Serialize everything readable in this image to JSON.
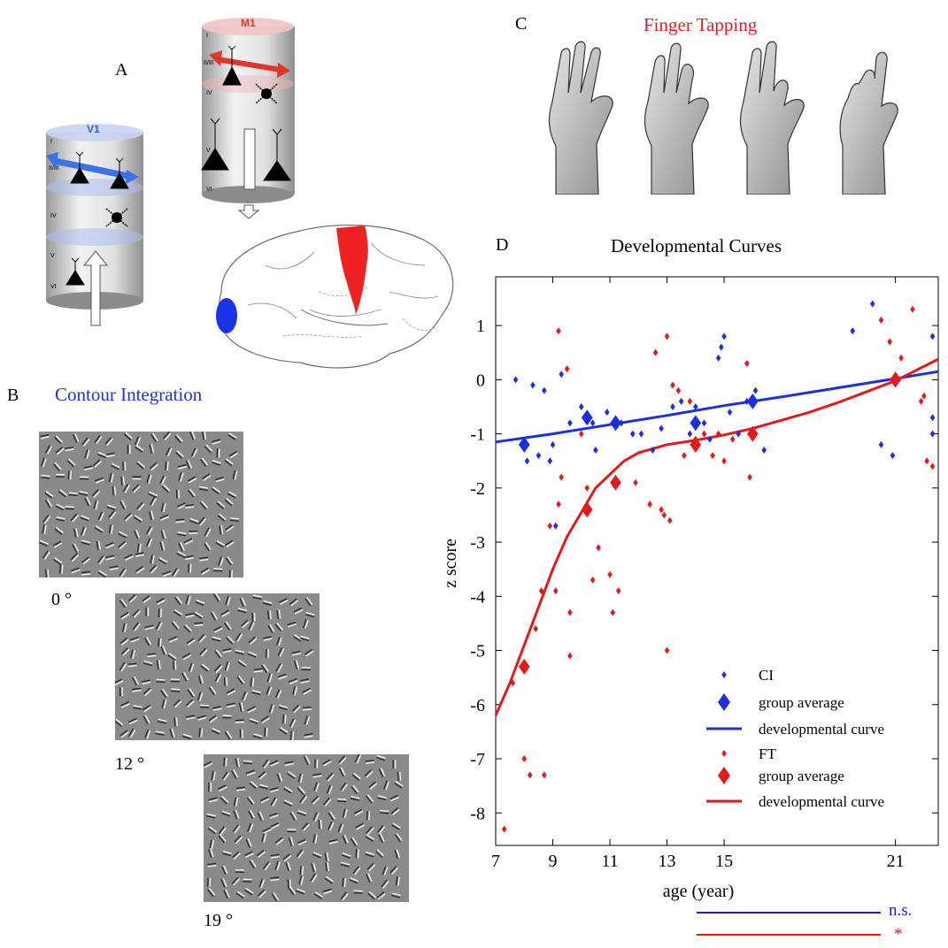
{
  "panels": {
    "a": {
      "letter": "A",
      "v1_label": "V1",
      "m1_label": "M1",
      "layers_v1": [
        "I",
        "II/III",
        "IV",
        "V",
        "VI"
      ],
      "layers_m1": [
        "I",
        "II/III",
        "IV",
        "V",
        "VI"
      ],
      "colors": {
        "v1": "#2f64e0",
        "m1": "#e0352b"
      }
    },
    "b": {
      "letter": "B",
      "title": "Contour Integration",
      "title_color": "#2233dd",
      "stimuli": [
        {
          "angle_label": "0 °"
        },
        {
          "angle_label": "12 °"
        },
        {
          "angle_label": "19 °"
        }
      ]
    },
    "c": {
      "letter": "C",
      "title": "Finger Tapping",
      "title_color": "#e02020"
    },
    "d": {
      "letter": "D",
      "title": "Developmental Curves",
      "significance": [
        {
          "label": "n.s.",
          "color": "#1a1adb"
        },
        {
          "label": "*",
          "color": "#e01818"
        }
      ]
    }
  },
  "chart_data": {
    "type": "scatter",
    "title": "Developmental Curves",
    "xlabel": "age (year)",
    "ylabel": "z score",
    "xlim": [
      7,
      22.5
    ],
    "ylim": [
      -8.6,
      1.9
    ],
    "xticks": [
      7,
      9,
      11,
      13,
      15,
      21
    ],
    "yticks": [
      1,
      0,
      -1,
      -2,
      -3,
      -4,
      -5,
      -6,
      -7,
      -8
    ],
    "legend": {
      "placement": "bottom-right",
      "entries": [
        {
          "label": "CI",
          "kind": "point",
          "color": "#1a2fe0"
        },
        {
          "label": "group average",
          "kind": "diamond",
          "color": "#1a2fe0"
        },
        {
          "label": "developmental curve",
          "kind": "line",
          "color": "#1a2fe0"
        },
        {
          "label": "FT",
          "kind": "point",
          "color": "#e31a1a"
        },
        {
          "label": "group average",
          "kind": "diamond",
          "color": "#e31a1a"
        },
        {
          "label": "developmental curve",
          "kind": "line",
          "color": "#e31a1a"
        }
      ]
    },
    "series": [
      {
        "name": "CI",
        "color": "#1a2fe0",
        "points": [
          [
            7.7,
            0.0
          ],
          [
            8.1,
            -1.5
          ],
          [
            8.3,
            -0.1
          ],
          [
            8.5,
            -1.4
          ],
          [
            8.7,
            -0.2
          ],
          [
            8.9,
            -1.5
          ],
          [
            9.0,
            -1.2
          ],
          [
            9.3,
            0.1
          ],
          [
            9.1,
            -2.7
          ],
          [
            9.6,
            -0.8
          ],
          [
            10.0,
            -0.5
          ],
          [
            10.4,
            -0.8
          ],
          [
            10.5,
            -1.3
          ],
          [
            10.9,
            -0.6
          ],
          [
            11.4,
            -0.8
          ],
          [
            11.8,
            -1.0
          ],
          [
            12.1,
            -1.0
          ],
          [
            12.5,
            -1.3
          ],
          [
            12.8,
            -0.9
          ],
          [
            13.2,
            -0.5
          ],
          [
            13.5,
            -0.4
          ],
          [
            13.8,
            -1.0
          ],
          [
            14.0,
            -0.5
          ],
          [
            14.3,
            -0.8
          ],
          [
            14.5,
            -1.1
          ],
          [
            14.8,
            0.4
          ],
          [
            14.9,
            0.6
          ],
          [
            15.0,
            0.8
          ],
          [
            15.2,
            -0.6
          ],
          [
            15.5,
            -1.0
          ],
          [
            15.8,
            -0.4
          ],
          [
            16.1,
            -0.2
          ],
          [
            16.4,
            -1.3
          ],
          [
            19.5,
            0.9
          ],
          [
            20.2,
            1.4
          ],
          [
            20.5,
            -1.2
          ],
          [
            20.9,
            -1.4
          ],
          [
            22.3,
            0.8
          ],
          [
            22.3,
            -0.7
          ],
          [
            22.3,
            -1.0
          ]
        ]
      },
      {
        "name": "FT",
        "color": "#e31a1a",
        "points": [
          [
            7.3,
            -8.3
          ],
          [
            7.6,
            -5.6
          ],
          [
            8.0,
            -7.0
          ],
          [
            8.2,
            -7.3
          ],
          [
            8.4,
            -4.6
          ],
          [
            8.6,
            -3.9
          ],
          [
            8.7,
            -7.3
          ],
          [
            8.9,
            -2.7
          ],
          [
            9.1,
            -3.9
          ],
          [
            9.2,
            -2.3
          ],
          [
            9.2,
            0.9
          ],
          [
            9.5,
            0.2
          ],
          [
            9.3,
            -1.8
          ],
          [
            9.6,
            -4.3
          ],
          [
            9.6,
            -5.1
          ],
          [
            10.0,
            -1.0
          ],
          [
            10.2,
            -2.0
          ],
          [
            10.4,
            -3.7
          ],
          [
            10.6,
            -3.1
          ],
          [
            11.0,
            -3.6
          ],
          [
            11.1,
            -4.3
          ],
          [
            11.3,
            -3.9
          ],
          [
            11.9,
            -1.9
          ],
          [
            12.4,
            -2.3
          ],
          [
            12.6,
            0.5
          ],
          [
            12.8,
            -2.4
          ],
          [
            12.9,
            -2.5
          ],
          [
            13.0,
            0.8
          ],
          [
            13.1,
            -2.6
          ],
          [
            13.2,
            -0.1
          ],
          [
            13.4,
            -0.2
          ],
          [
            13.0,
            -5.0
          ],
          [
            13.6,
            -1.4
          ],
          [
            13.8,
            -0.4
          ],
          [
            14.0,
            -1.1
          ],
          [
            14.3,
            -1.0
          ],
          [
            14.6,
            -1.4
          ],
          [
            14.8,
            -1.0
          ],
          [
            15.0,
            -1.5
          ],
          [
            15.3,
            -1.1
          ],
          [
            15.8,
            0.3
          ],
          [
            15.9,
            -1.8
          ],
          [
            20.5,
            1.1
          ],
          [
            20.8,
            0.7
          ],
          [
            21.2,
            0.4
          ],
          [
            21.6,
            1.3
          ],
          [
            22.0,
            -0.3
          ],
          [
            21.9,
            -0.4
          ],
          [
            22.1,
            -1.5
          ],
          [
            22.3,
            -1.6
          ]
        ]
      }
    ],
    "group_averages": [
      {
        "series": "CI",
        "points": [
          [
            8.0,
            -1.2
          ],
          [
            10.2,
            -0.7
          ],
          [
            11.2,
            -0.8
          ],
          [
            14.0,
            -0.8
          ],
          [
            16.0,
            -0.4
          ],
          [
            21.0,
            0.0
          ]
        ]
      },
      {
        "series": "FT",
        "points": [
          [
            8.0,
            -5.3
          ],
          [
            10.2,
            -2.4
          ],
          [
            11.2,
            -1.9
          ],
          [
            14.0,
            -1.2
          ],
          [
            16.0,
            -1.0
          ],
          [
            21.0,
            0.0
          ]
        ]
      }
    ],
    "curves": [
      {
        "series": "CI",
        "points": [
          [
            7,
            -1.15
          ],
          [
            9,
            -1.0
          ],
          [
            11,
            -0.83
          ],
          [
            13,
            -0.66
          ],
          [
            15,
            -0.48
          ],
          [
            17,
            -0.32
          ],
          [
            19,
            -0.15
          ],
          [
            21,
            0.02
          ],
          [
            22.5,
            0.15
          ]
        ]
      },
      {
        "series": "FT",
        "points": [
          [
            7,
            -6.2
          ],
          [
            7.5,
            -5.6
          ],
          [
            8,
            -4.9
          ],
          [
            8.5,
            -4.2
          ],
          [
            9,
            -3.5
          ],
          [
            9.5,
            -2.9
          ],
          [
            10,
            -2.45
          ],
          [
            10.5,
            -2.0
          ],
          [
            11,
            -1.75
          ],
          [
            11.5,
            -1.5
          ],
          [
            12,
            -1.35
          ],
          [
            13,
            -1.2
          ],
          [
            14,
            -1.12
          ],
          [
            15,
            -1.02
          ],
          [
            16,
            -0.9
          ],
          [
            17,
            -0.75
          ],
          [
            18,
            -0.6
          ],
          [
            19,
            -0.42
          ],
          [
            20,
            -0.22
          ],
          [
            21,
            -0.02
          ],
          [
            22.5,
            0.38
          ]
        ]
      }
    ]
  }
}
